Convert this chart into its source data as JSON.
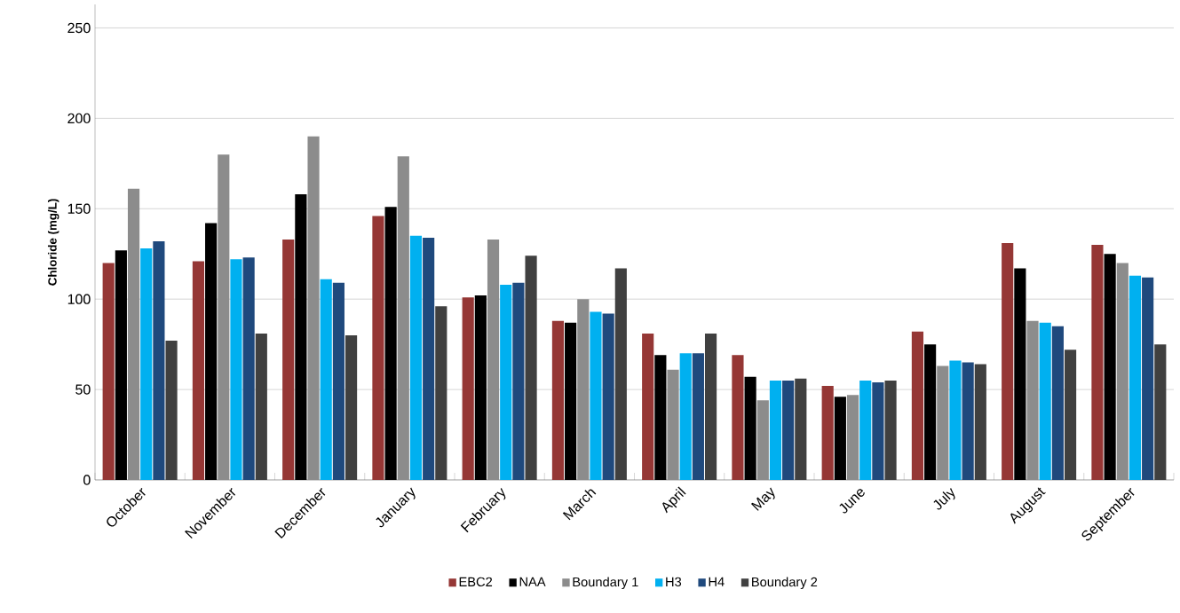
{
  "chart_data": {
    "type": "bar",
    "ylabel": "**Chloride (mg/L)**",
    "categories": [
      "October",
      "November",
      "December",
      "January",
      "February",
      "March",
      "April",
      "May",
      "June",
      "July",
      "August",
      "September"
    ],
    "series": [
      {
        "name": "EBC2",
        "color": "#953735",
        "values": [
          120,
          121,
          133,
          146,
          101,
          88,
          81,
          69,
          52,
          82,
          131,
          130
        ]
      },
      {
        "name": "NAA",
        "color": "#000000",
        "values": [
          127,
          142,
          158,
          151,
          102,
          87,
          69,
          57,
          46,
          75,
          117,
          125
        ]
      },
      {
        "name": "Boundary 1",
        "color": "#8c8c8c",
        "values": [
          161,
          180,
          190,
          179,
          133,
          100,
          61,
          44,
          47,
          63,
          88,
          120
        ]
      },
      {
        "name": "H3",
        "color": "#00b0f0",
        "values": [
          128,
          122,
          111,
          135,
          108,
          93,
          70,
          55,
          55,
          66,
          87,
          113
        ]
      },
      {
        "name": "H4",
        "color": "#1f497d",
        "values": [
          132,
          123,
          109,
          134,
          109,
          92,
          70,
          55,
          54,
          65,
          85,
          112
        ]
      },
      {
        "name": "Boundary 2",
        "color": "#404040",
        "values": [
          77,
          81,
          80,
          96,
          124,
          117,
          81,
          56,
          55,
          64,
          72,
          75
        ]
      }
    ],
    "ylim": [
      0,
      263
    ],
    "yticks": [
      0,
      50,
      100,
      150,
      200,
      250
    ],
    "grid": "y",
    "legend": "bottom"
  }
}
